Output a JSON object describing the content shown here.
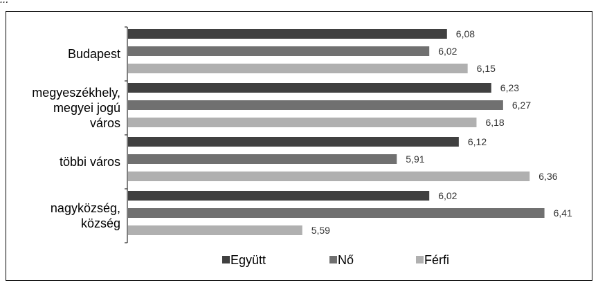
{
  "caption": "...",
  "colors": {
    "Együtt": "#404040",
    "Nő": "#707070",
    "Férfi": "#b0b0b0"
  },
  "chart_data": {
    "type": "bar",
    "orientation": "horizontal",
    "categories": [
      [
        "Budapest"
      ],
      [
        "megyeszékhely,",
        "megyei jogú",
        "város"
      ],
      [
        "többi város"
      ],
      [
        "nagyközség,",
        "község"
      ]
    ],
    "series": [
      {
        "name": "Együtt",
        "values": [
          6.08,
          6.23,
          6.12,
          6.02
        ],
        "labels": [
          "6,08",
          "6,23",
          "6,12",
          "6,02"
        ]
      },
      {
        "name": "Nő",
        "values": [
          6.02,
          6.27,
          5.91,
          6.41
        ],
        "labels": [
          "6,02",
          "6,27",
          "5,91",
          "6,41"
        ]
      },
      {
        "name": "Férfi",
        "values": [
          6.15,
          6.18,
          6.36,
          5.59
        ],
        "labels": [
          "6,15",
          "6,18",
          "6,36",
          "5,59"
        ]
      }
    ],
    "xlim": [
      5,
      6.5
    ],
    "axis_visible": false,
    "grid": false,
    "legend_position": "bottom"
  }
}
